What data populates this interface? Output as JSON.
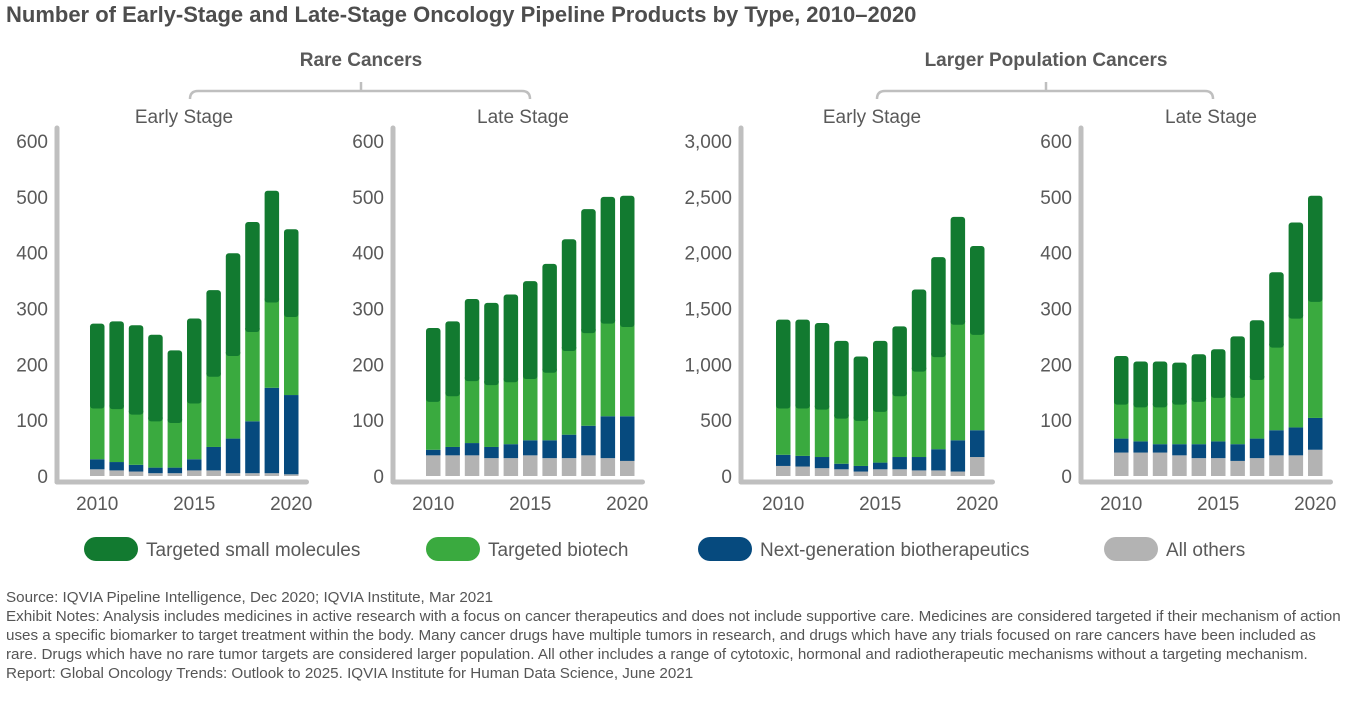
{
  "title": "Number of Early-Stage and Late-Stage Oncology Pipeline Products by Type, 2010–2020",
  "colors": {
    "Targeted small molecules": "#127a30",
    "Targeted biotech": "#3aaa3f",
    "Next-generation biotherapeutics": "#064a7e",
    "All others": "#b3b3b3",
    "axis": "#bfbfbf",
    "bracket": "#bfbfbf"
  },
  "groups": [
    {
      "label": "Rare Cancers"
    },
    {
      "label": "Larger Population Cancers"
    }
  ],
  "legend": [
    {
      "name": "Targeted small molecules"
    },
    {
      "name": "Targeted biotech"
    },
    {
      "name": "Next-generation biotherapeutics"
    },
    {
      "name": "All others"
    }
  ],
  "chart_data": [
    {
      "type": "bar",
      "stacked": true,
      "group": "Rare Cancers",
      "title": "Early Stage",
      "x": [
        2010,
        2011,
        2012,
        2013,
        2014,
        2015,
        2016,
        2017,
        2018,
        2019,
        2020
      ],
      "x_tick_labels": [
        "2010",
        "2015",
        "2020"
      ],
      "ylim": [
        0,
        600
      ],
      "y_tick_labels": [
        "0",
        "100",
        "200",
        "300",
        "400",
        "500",
        "600"
      ],
      "series": [
        {
          "name": "All others",
          "values": [
            12,
            10,
            8,
            5,
            5,
            10,
            10,
            5,
            5,
            5,
            3
          ]
        },
        {
          "name": "Next-generation biotherapeutics",
          "values": [
            18,
            15,
            12,
            10,
            10,
            20,
            42,
            62,
            93,
            153,
            142
          ]
        },
        {
          "name": "Targeted biotech",
          "values": [
            98,
            102,
            97,
            90,
            87,
            107,
            133,
            155,
            167,
            160,
            147
          ]
        },
        {
          "name": "Targeted small molecules",
          "values": [
            145,
            150,
            153,
            148,
            123,
            145,
            148,
            177,
            190,
            193,
            150
          ]
        }
      ]
    },
    {
      "type": "bar",
      "stacked": true,
      "group": "Rare Cancers",
      "title": "Late Stage",
      "x": [
        2010,
        2011,
        2012,
        2013,
        2014,
        2015,
        2016,
        2017,
        2018,
        2019,
        2020
      ],
      "x_tick_labels": [
        "2010",
        "2015",
        "2020"
      ],
      "ylim": [
        0,
        600
      ],
      "y_tick_labels": [
        "0",
        "100",
        "200",
        "300",
        "400",
        "500",
        "600"
      ],
      "series": [
        {
          "name": "All others",
          "values": [
            37,
            37,
            37,
            32,
            32,
            37,
            32,
            32,
            37,
            32,
            27
          ]
        },
        {
          "name": "Next-generation biotherapeutics",
          "values": [
            10,
            15,
            22,
            20,
            25,
            27,
            32,
            42,
            53,
            75,
            80
          ]
        },
        {
          "name": "Targeted biotech",
          "values": [
            93,
            98,
            118,
            118,
            118,
            117,
            128,
            157,
            173,
            173,
            167
          ]
        },
        {
          "name": "Targeted small molecules",
          "values": [
            125,
            127,
            140,
            140,
            150,
            168,
            188,
            193,
            215,
            220,
            228
          ]
        }
      ]
    },
    {
      "type": "bar",
      "stacked": true,
      "group": "Larger Population Cancers",
      "title": "Early Stage",
      "x": [
        2010,
        2011,
        2012,
        2013,
        2014,
        2015,
        2016,
        2017,
        2018,
        2019,
        2020
      ],
      "x_tick_labels": [
        "2010",
        "2015",
        "2020"
      ],
      "ylim": [
        0,
        3000
      ],
      "y_tick_labels": [
        "0",
        "500",
        "1,000",
        "1,500",
        "2,000",
        "2,500",
        "3,000"
      ],
      "series": [
        {
          "name": "All others",
          "values": [
            90,
            85,
            70,
            60,
            40,
            60,
            60,
            50,
            50,
            40,
            170
          ]
        },
        {
          "name": "Next-generation biotherapeutics",
          "values": [
            100,
            95,
            100,
            50,
            50,
            60,
            110,
            120,
            190,
            280,
            240
          ]
        },
        {
          "name": "Targeted biotech",
          "values": [
            450,
            460,
            460,
            440,
            440,
            490,
            580,
            800,
            860,
            1070,
            890
          ]
        },
        {
          "name": "Targeted small molecules",
          "values": [
            760,
            760,
            740,
            660,
            540,
            600,
            590,
            700,
            860,
            930,
            760
          ]
        }
      ]
    },
    {
      "type": "bar",
      "stacked": true,
      "group": "Larger Population Cancers",
      "title": "Late Stage",
      "x": [
        2010,
        2011,
        2012,
        2013,
        2014,
        2015,
        2016,
        2017,
        2018,
        2019,
        2020
      ],
      "x_tick_labels": [
        "2010",
        "2015",
        "2020"
      ],
      "ylim": [
        0,
        600
      ],
      "y_tick_labels": [
        "0",
        "100",
        "200",
        "300",
        "400",
        "500",
        "600"
      ],
      "series": [
        {
          "name": "All others",
          "values": [
            42,
            42,
            42,
            37,
            32,
            32,
            27,
            32,
            37,
            37,
            47
          ]
        },
        {
          "name": "Next-generation biotherapeutics",
          "values": [
            25,
            20,
            15,
            20,
            25,
            30,
            30,
            35,
            45,
            50,
            57
          ]
        },
        {
          "name": "Targeted biotech",
          "values": [
            68,
            68,
            73,
            78,
            83,
            85,
            90,
            112,
            155,
            202,
            215
          ]
        },
        {
          "name": "Targeted small molecules",
          "values": [
            80,
            75,
            75,
            68,
            78,
            80,
            103,
            100,
            128,
            165,
            183
          ]
        }
      ]
    }
  ],
  "footnotes": {
    "source": "Source: IQVIA Pipeline Intelligence, Dec 2020; IQVIA Institute, Mar 2021",
    "notes": "Exhibit Notes: Analysis includes medicines in active research with a focus on cancer therapeutics and does not include supportive care. Medicines are considered targeted if their mechanism of action uses a specific biomarker to target treatment within the body. Many cancer drugs have multiple tumors in research, and drugs which have any trials focused on rare cancers have been included as rare. Drugs which have no rare tumor targets are considered larger population. All other includes a range of cytotoxic, hormonal and radiotherapeutic mechanisms without a targeting mechanism.",
    "report": "Report: Global Oncology Trends: Outlook to 2025. IQVIA Institute for Human Data Science, June 2021"
  }
}
